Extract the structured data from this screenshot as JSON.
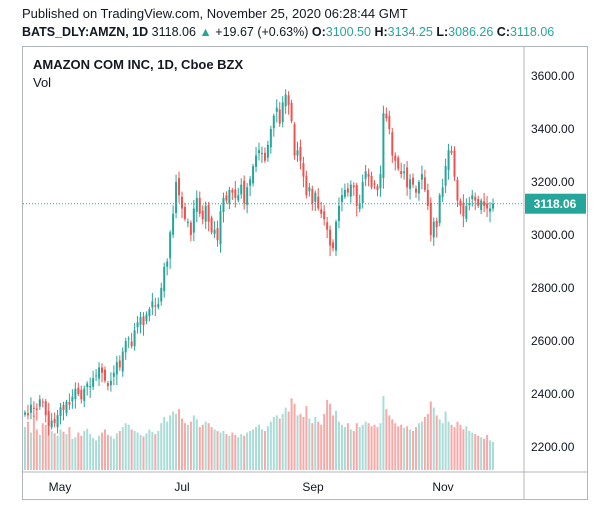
{
  "header": {
    "published": "Published on TradingView.com, November 25, 2020 06:28:44 GMT",
    "symbol": "BATS_DLY:AMZN, 1D",
    "last": "3118.06",
    "change_arrow": "▲",
    "change": "+19.67 (+0.63%)",
    "o_label": "O:",
    "o_value": "3100.50",
    "h_label": "H:",
    "h_value": "3134.25",
    "l_label": "L:",
    "l_value": "3086.26",
    "c_label": "C:",
    "c_value": "3118.06"
  },
  "legend": {
    "title": "AMAZON COM INC, 1D, Cboe BZX",
    "vol_label": "Vol"
  },
  "colors": {
    "up": "#26a69a",
    "down": "#ef5350",
    "up_vol": "#a9dcd7",
    "down_vol": "#f7a9a7",
    "price_line": "#26a69a"
  },
  "chart_data": {
    "type": "candlestick",
    "y_ticks": [
      "3600.00",
      "3400.00",
      "3200.00",
      "3000.00",
      "2800.00",
      "2600.00",
      "2400.00",
      "2200.00"
    ],
    "y_tick_values": [
      3600,
      3400,
      3200,
      3000,
      2800,
      2600,
      2400,
      2200
    ],
    "ylim": [
      2200,
      3600
    ],
    "x_ticks": [
      "May",
      "Jul",
      "Sep",
      "Nov"
    ],
    "last_price_label": "3118.06",
    "last_price": 3118.06,
    "closes": [
      2330,
      2320,
      2360,
      2345,
      2340,
      2380,
      2370,
      2320,
      2280,
      2300,
      2290,
      2320,
      2350,
      2340,
      2370,
      2360,
      2390,
      2420,
      2400,
      2380,
      2420,
      2440,
      2430,
      2460,
      2470,
      2500,
      2480,
      2450,
      2430,
      2450,
      2480,
      2520,
      2500,
      2560,
      2600,
      2610,
      2580,
      2640,
      2670,
      2690,
      2660,
      2700,
      2720,
      2750,
      2730,
      2740,
      2800,
      2880,
      2900,
      3010,
      3080,
      3200,
      3150,
      3100,
      3060,
      3050,
      3000,
      3100,
      3140,
      3080,
      3060,
      3110,
      3050,
      3010,
      3020,
      2980,
      3090,
      3140,
      3130,
      3170,
      3160,
      3140,
      3150,
      3190,
      3120,
      3180,
      3210,
      3260,
      3300,
      3320,
      3310,
      3280,
      3340,
      3400,
      3450,
      3480,
      3420,
      3500,
      3530,
      3490,
      3430,
      3300,
      3320,
      3280,
      3220,
      3150,
      3180,
      3120,
      3160,
      3100,
      3080,
      3060,
      3020,
      2960,
      2950,
      3050,
      3110,
      3150,
      3170,
      3160,
      3190,
      3180,
      3110,
      3120,
      3200,
      3240,
      3220,
      3180,
      3190,
      3170,
      3230,
      3460,
      3440,
      3400,
      3300,
      3280,
      3250,
      3230,
      3240,
      3180,
      3210,
      3190,
      3160,
      3200,
      3230,
      3170,
      3110,
      3000,
      3050,
      3030,
      3150,
      3180,
      3260,
      3320,
      3310,
      3220,
      3130,
      3110,
      3070,
      3110,
      3120,
      3150,
      3130,
      3110,
      3130,
      3110,
      3100,
      3100,
      3118.06
    ],
    "vol_max_units": 1.0,
    "volumes": [
      0.55,
      0.62,
      0.48,
      0.7,
      0.52,
      0.45,
      0.6,
      0.58,
      0.66,
      0.5,
      0.47,
      0.44,
      0.52,
      0.49,
      0.46,
      0.55,
      0.4,
      0.42,
      0.48,
      0.44,
      0.5,
      0.53,
      0.46,
      0.41,
      0.38,
      0.44,
      0.48,
      0.52,
      0.45,
      0.43,
      0.4,
      0.47,
      0.5,
      0.55,
      0.6,
      0.58,
      0.52,
      0.5,
      0.48,
      0.45,
      0.43,
      0.47,
      0.52,
      0.49,
      0.46,
      0.5,
      0.6,
      0.68,
      0.62,
      0.7,
      0.75,
      0.72,
      0.78,
      0.66,
      0.6,
      0.58,
      0.62,
      0.7,
      0.65,
      0.55,
      0.58,
      0.62,
      0.6,
      0.55,
      0.52,
      0.5,
      0.48,
      0.5,
      0.46,
      0.44,
      0.48,
      0.45,
      0.42,
      0.46,
      0.44,
      0.48,
      0.5,
      0.52,
      0.55,
      0.58,
      0.52,
      0.5,
      0.56,
      0.62,
      0.68,
      0.7,
      0.66,
      0.72,
      0.8,
      0.75,
      0.92,
      0.85,
      0.7,
      0.72,
      0.68,
      0.82,
      0.66,
      0.6,
      0.68,
      0.62,
      0.58,
      0.72,
      0.9,
      0.85,
      0.7,
      0.76,
      0.62,
      0.58,
      0.55,
      0.6,
      0.52,
      0.5,
      0.6,
      0.55,
      0.58,
      0.62,
      0.6,
      0.56,
      0.58,
      0.55,
      0.6,
      0.95,
      0.78,
      0.7,
      0.65,
      0.6,
      0.56,
      0.58,
      0.54,
      0.56,
      0.52,
      0.5,
      0.55,
      0.6,
      0.62,
      0.68,
      0.72,
      0.88,
      0.8,
      0.7,
      0.65,
      0.6,
      0.75,
      0.62,
      0.58,
      0.55,
      0.62,
      0.58,
      0.52,
      0.56,
      0.5,
      0.48,
      0.46,
      0.44,
      0.42,
      0.4,
      0.45,
      0.38,
      0.36
    ]
  }
}
